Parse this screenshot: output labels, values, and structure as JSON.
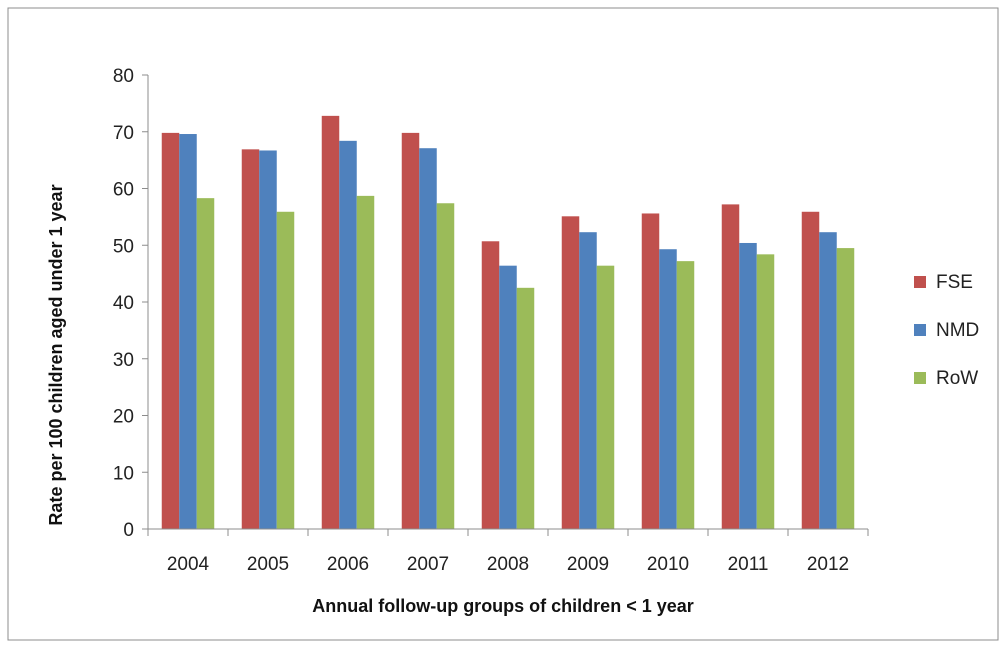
{
  "chart_data": {
    "type": "bar",
    "title": "",
    "xlabel": "Annual follow-up groups of children < 1 year",
    "ylabel": "Rate per 100 children aged under 1 year",
    "ylim": [
      0,
      80
    ],
    "yticks": [
      "0",
      "10",
      "20",
      "30",
      "40",
      "50",
      "60",
      "70",
      "80"
    ],
    "grid": false,
    "legend_position": "right",
    "categories": [
      "2004",
      "2005",
      "2006",
      "2007",
      "2008",
      "2009",
      "2010",
      "2011",
      "2012"
    ],
    "series": [
      {
        "name": "FSE",
        "color": "#c0504d",
        "values": [
          69.8,
          66.9,
          72.8,
          69.8,
          50.7,
          55.1,
          55.6,
          57.2,
          55.9
        ]
      },
      {
        "name": "NMD",
        "color": "#4f81bd",
        "values": [
          69.6,
          66.7,
          68.4,
          67.1,
          46.4,
          52.3,
          49.3,
          50.4,
          52.3
        ]
      },
      {
        "name": "RoW",
        "color": "#9bbb59",
        "values": [
          58.3,
          55.9,
          58.7,
          57.4,
          42.5,
          46.4,
          47.2,
          48.4,
          49.5
        ]
      }
    ]
  }
}
